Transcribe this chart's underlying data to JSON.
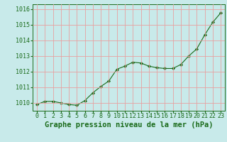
{
  "x": [
    0,
    1,
    2,
    3,
    4,
    5,
    6,
    7,
    8,
    9,
    10,
    11,
    12,
    13,
    14,
    15,
    16,
    17,
    18,
    19,
    20,
    21,
    22,
    23
  ],
  "y": [
    1009.9,
    1010.1,
    1010.1,
    1010.0,
    1009.9,
    1009.85,
    1010.15,
    1010.65,
    1011.05,
    1011.4,
    1012.15,
    1012.35,
    1012.6,
    1012.55,
    1012.35,
    1012.25,
    1012.2,
    1012.2,
    1012.45,
    1013.0,
    1013.45,
    1014.35,
    1015.15,
    1015.75
  ],
  "line_color": "#1a6b1a",
  "marker_color": "#1a6b1a",
  "bg_color": "#c8eaea",
  "grid_color": "#e8a0a0",
  "title": "Graphe pression niveau de la mer (hPa)",
  "ylim_min": 1009.5,
  "ylim_max": 1016.3,
  "yticks": [
    1010,
    1011,
    1012,
    1013,
    1014,
    1015,
    1016
  ],
  "xticks": [
    0,
    1,
    2,
    3,
    4,
    5,
    6,
    7,
    8,
    9,
    10,
    11,
    12,
    13,
    14,
    15,
    16,
    17,
    18,
    19,
    20,
    21,
    22,
    23
  ],
  "title_fontsize": 7.5,
  "tick_fontsize": 6,
  "ylabel_color": "#1a6b1a",
  "xlabel_color": "#1a6b1a"
}
